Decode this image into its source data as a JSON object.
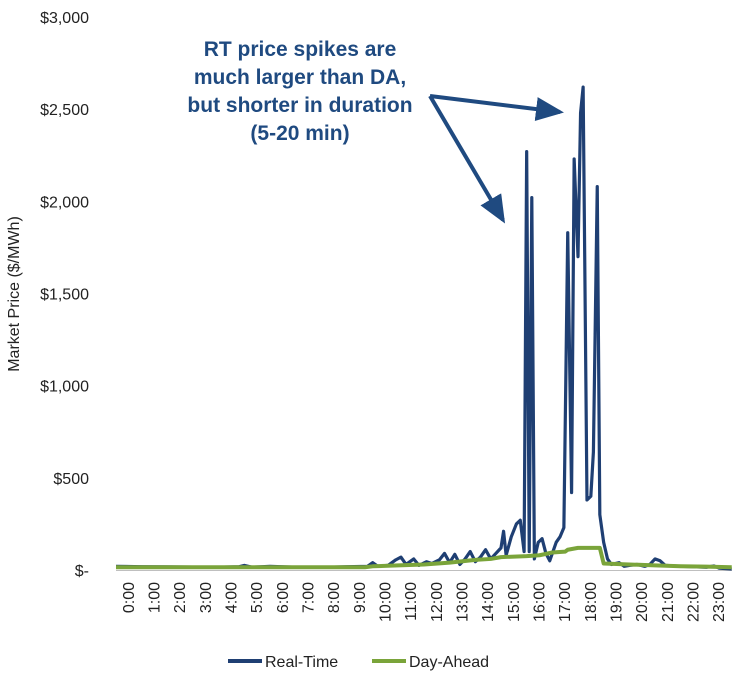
{
  "chart_data": {
    "type": "line",
    "title": "",
    "ylabel": "Market Price ($/MWh)",
    "xlabel": "",
    "ylim": [
      0,
      3000
    ],
    "y_ticks": [
      0,
      500,
      1000,
      1500,
      2000,
      2500,
      3000
    ],
    "y_tick_labels": [
      "$-",
      "$500",
      "$1,000",
      "$1,500",
      "$2,000",
      "$2,500",
      "$3,000"
    ],
    "x_tick_labels": [
      "0:00",
      "1:00",
      "2:00",
      "3:00",
      "4:00",
      "5:00",
      "6:00",
      "7:00",
      "8:00",
      "9:00",
      "10:00",
      "11:00",
      "12:00",
      "13:00",
      "14:00",
      "15:00",
      "16:00",
      "17:00",
      "18:00",
      "19:00",
      "20:00",
      "21:00",
      "22:00",
      "23:00"
    ],
    "grid": false,
    "legend_position": "bottom",
    "annotation": [
      "RT price spikes are",
      "much larger than DA,",
      "but shorter in duration",
      "(5-20 min)"
    ],
    "series": [
      {
        "name": "Real-Time",
        "color": "#1f3f73",
        "points": [
          [
            0.0,
            20
          ],
          [
            1.0,
            18
          ],
          [
            2.0,
            17
          ],
          [
            3.0,
            16
          ],
          [
            4.0,
            15
          ],
          [
            4.8,
            18
          ],
          [
            5.0,
            25
          ],
          [
            5.3,
            15
          ],
          [
            6.0,
            20
          ],
          [
            7.0,
            15
          ],
          [
            8.0,
            14
          ],
          [
            9.0,
            18
          ],
          [
            9.8,
            20
          ],
          [
            10.0,
            40
          ],
          [
            10.2,
            20
          ],
          [
            10.6,
            25
          ],
          [
            10.9,
            55
          ],
          [
            11.1,
            70
          ],
          [
            11.3,
            30
          ],
          [
            11.6,
            60
          ],
          [
            11.8,
            25
          ],
          [
            12.1,
            45
          ],
          [
            12.3,
            35
          ],
          [
            12.6,
            55
          ],
          [
            12.8,
            90
          ],
          [
            13.0,
            40
          ],
          [
            13.2,
            85
          ],
          [
            13.4,
            30
          ],
          [
            13.6,
            60
          ],
          [
            13.8,
            100
          ],
          [
            14.0,
            45
          ],
          [
            14.2,
            70
          ],
          [
            14.4,
            110
          ],
          [
            14.6,
            60
          ],
          [
            14.8,
            90
          ],
          [
            15.0,
            120
          ],
          [
            15.1,
            210
          ],
          [
            15.2,
            80
          ],
          [
            15.4,
            180
          ],
          [
            15.6,
            250
          ],
          [
            15.75,
            270
          ],
          [
            15.9,
            100
          ],
          [
            16.0,
            2270
          ],
          [
            16.1,
            100
          ],
          [
            16.2,
            2020
          ],
          [
            16.3,
            60
          ],
          [
            16.45,
            150
          ],
          [
            16.6,
            170
          ],
          [
            16.75,
            90
          ],
          [
            16.9,
            50
          ],
          [
            17.0,
            90
          ],
          [
            17.15,
            150
          ],
          [
            17.3,
            180
          ],
          [
            17.45,
            230
          ],
          [
            17.6,
            1830
          ],
          [
            17.75,
            420
          ],
          [
            17.85,
            2230
          ],
          [
            18.0,
            1700
          ],
          [
            18.1,
            2480
          ],
          [
            18.2,
            2620
          ],
          [
            18.35,
            380
          ],
          [
            18.5,
            400
          ],
          [
            18.6,
            640
          ],
          [
            18.75,
            2080
          ],
          [
            18.85,
            300
          ],
          [
            19.0,
            150
          ],
          [
            19.15,
            60
          ],
          [
            19.3,
            30
          ],
          [
            19.6,
            40
          ],
          [
            19.8,
            20
          ],
          [
            20.0,
            25
          ],
          [
            20.3,
            30
          ],
          [
            20.6,
            20
          ],
          [
            20.8,
            30
          ],
          [
            21.0,
            60
          ],
          [
            21.2,
            50
          ],
          [
            21.4,
            25
          ],
          [
            22.0,
            20
          ],
          [
            23.0,
            15
          ],
          [
            23.3,
            22
          ],
          [
            23.5,
            10
          ],
          [
            23.99,
            5
          ]
        ]
      },
      {
        "name": "Day-Ahead",
        "color": "#7aa43a",
        "points": [
          [
            0.0,
            15
          ],
          [
            9.7,
            15
          ],
          [
            10.0,
            20
          ],
          [
            11.0,
            25
          ],
          [
            12.0,
            30
          ],
          [
            13.0,
            40
          ],
          [
            14.0,
            55
          ],
          [
            14.6,
            60
          ],
          [
            15.0,
            70
          ],
          [
            16.0,
            75
          ],
          [
            16.5,
            80
          ],
          [
            17.0,
            95
          ],
          [
            17.5,
            100
          ],
          [
            17.6,
            110
          ],
          [
            18.0,
            120
          ],
          [
            18.85,
            120
          ],
          [
            19.0,
            35
          ],
          [
            20.0,
            30
          ],
          [
            21.0,
            25
          ],
          [
            22.0,
            20
          ],
          [
            23.0,
            18
          ],
          [
            23.99,
            15
          ]
        ]
      }
    ]
  }
}
